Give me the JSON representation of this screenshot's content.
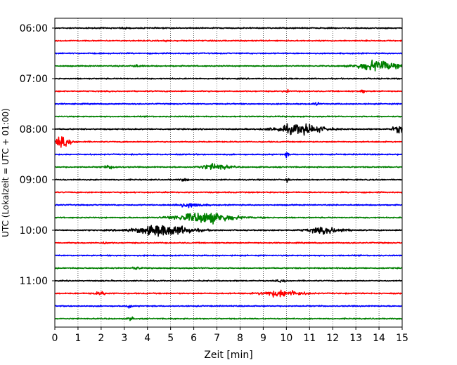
{
  "chart_data": {
    "type": "line",
    "title": "",
    "xlabel": "Zeit  [min]",
    "ylabel": "UTC (Lokalzeit = UTC + 01:00)",
    "xlim": [
      0,
      15
    ],
    "x_ticks": [
      "0",
      "1",
      "2",
      "3",
      "4",
      "5",
      "6",
      "7",
      "8",
      "9",
      "10",
      "11",
      "12",
      "13",
      "14",
      "15"
    ],
    "y_tick_labels": [
      "06:00",
      "07:00",
      "08:00",
      "09:00",
      "10:00",
      "11:00"
    ],
    "row_interval_minutes": 15,
    "grid": "vertical-dotted",
    "colors": [
      "#000000",
      "#ff0000",
      "#0000ff",
      "#008000"
    ],
    "series": [
      {
        "start": "06:00",
        "color": "#000000",
        "events": [
          [
            3.0,
            0.15,
            0.3
          ]
        ]
      },
      {
        "start": "06:15",
        "color": "#ff0000",
        "events": [
          [
            4.8,
            0.15,
            0.3
          ]
        ]
      },
      {
        "start": "06:30",
        "color": "#0000ff",
        "events": []
      },
      {
        "start": "06:45",
        "color": "#008000",
        "events": [
          [
            13.9,
            0.8,
            2.6
          ],
          [
            3.5,
            0.2,
            0.5
          ]
        ]
      },
      {
        "start": "07:00",
        "color": "#000000",
        "events": []
      },
      {
        "start": "07:15",
        "color": "#ff0000",
        "events": [
          [
            10.0,
            0.1,
            1.0
          ],
          [
            13.3,
            0.08,
            1.0
          ]
        ]
      },
      {
        "start": "07:30",
        "color": "#0000ff",
        "events": [
          [
            11.3,
            0.1,
            0.8
          ]
        ]
      },
      {
        "start": "07:45",
        "color": "#008000",
        "events": []
      },
      {
        "start": "08:00",
        "color": "#000000",
        "events": [
          [
            10.6,
            1.0,
            2.4
          ],
          [
            14.9,
            0.3,
            1.8
          ]
        ]
      },
      {
        "start": "08:15",
        "color": "#ff0000",
        "events": [
          [
            0.3,
            0.4,
            2.2
          ]
        ]
      },
      {
        "start": "08:30",
        "color": "#0000ff",
        "events": [
          [
            10.0,
            0.1,
            1.0
          ]
        ]
      },
      {
        "start": "08:45",
        "color": "#008000",
        "events": [
          [
            6.9,
            0.6,
            1.4
          ],
          [
            2.4,
            0.3,
            0.6
          ]
        ]
      },
      {
        "start": "09:00",
        "color": "#000000",
        "events": [
          [
            10.0,
            0.08,
            1.2
          ],
          [
            5.6,
            0.2,
            0.5
          ]
        ]
      },
      {
        "start": "09:15",
        "color": "#ff0000",
        "events": []
      },
      {
        "start": "09:30",
        "color": "#0000ff",
        "events": [
          [
            5.8,
            0.6,
            0.9
          ]
        ]
      },
      {
        "start": "09:45",
        "color": "#008000",
        "events": [
          [
            6.5,
            1.2,
            2.6
          ]
        ]
      },
      {
        "start": "10:00",
        "color": "#000000",
        "events": [
          [
            4.7,
            1.2,
            2.7
          ],
          [
            11.7,
            0.8,
            1.4
          ]
        ]
      },
      {
        "start": "10:15",
        "color": "#ff0000",
        "events": [
          [
            2.2,
            0.1,
            0.6
          ]
        ]
      },
      {
        "start": "10:30",
        "color": "#0000ff",
        "events": []
      },
      {
        "start": "10:45",
        "color": "#008000",
        "events": [
          [
            3.5,
            0.2,
            0.5
          ]
        ]
      },
      {
        "start": "11:00",
        "color": "#000000",
        "events": [
          [
            9.8,
            0.2,
            0.5
          ]
        ]
      },
      {
        "start": "11:15",
        "color": "#ff0000",
        "events": [
          [
            9.8,
            0.8,
            1.6
          ],
          [
            2.0,
            0.3,
            0.6
          ]
        ]
      },
      {
        "start": "11:30",
        "color": "#0000ff",
        "events": [
          [
            3.2,
            0.1,
            1.0
          ]
        ]
      },
      {
        "start": "11:45",
        "color": "#008000",
        "events": [
          [
            3.3,
            0.1,
            0.9
          ]
        ]
      }
    ]
  }
}
